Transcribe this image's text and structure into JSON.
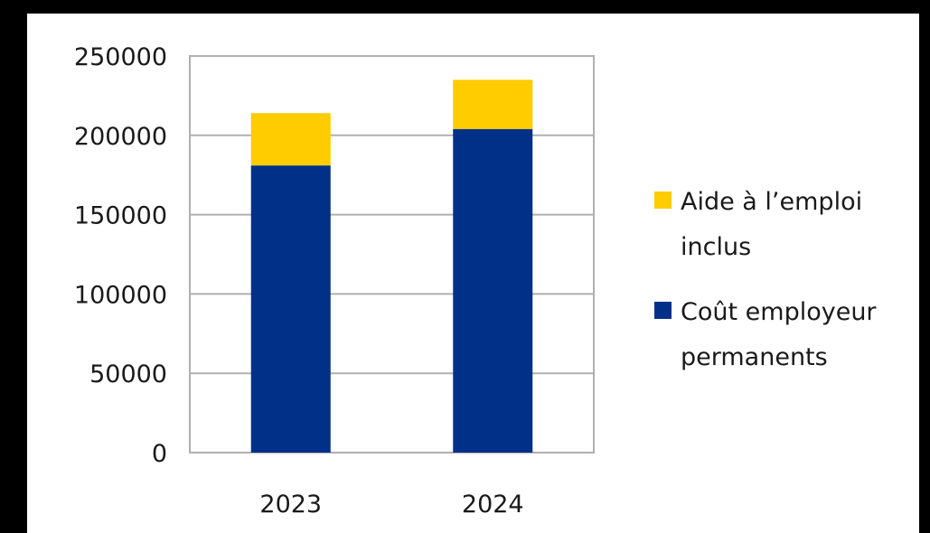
{
  "chart_data": {
    "type": "bar",
    "stacked": true,
    "categories": [
      "2023",
      "2024"
    ],
    "series": [
      {
        "name": "Coût employeur permanents",
        "values": [
          181000,
          204000
        ],
        "color": "#003087"
      },
      {
        "name": "Aide à l’emploi inclus",
        "values": [
          33000,
          31000
        ],
        "color": "#FFCC00"
      }
    ],
    "ylim": [
      0,
      250000
    ],
    "yticks": [
      "0",
      "50000",
      "100000",
      "150000",
      "200000",
      "250000"
    ],
    "grid": true,
    "legend_placement": "right",
    "legend": [
      {
        "lines": [
          "Aide à l’emploi",
          "inclus"
        ],
        "color": "#FFCC00"
      },
      {
        "lines": [
          "Coût employeur",
          "permanents"
        ],
        "color": "#003087"
      }
    ]
  }
}
